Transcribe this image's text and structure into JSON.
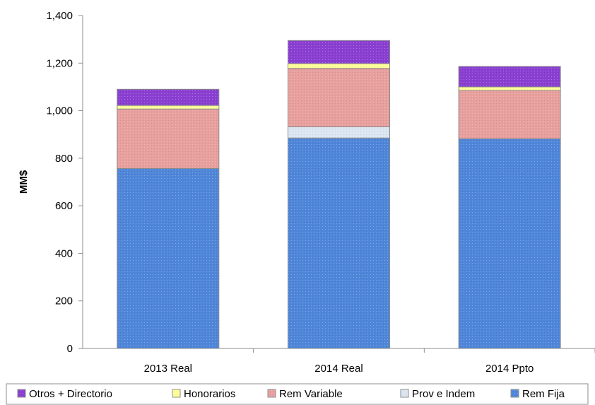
{
  "chart_data": {
    "type": "bar",
    "stacked": true,
    "categories": [
      "2013 Real",
      "2014 Real",
      "2014 Ppto"
    ],
    "series": [
      {
        "name": "Rem Fija",
        "color": "#4f86d9",
        "values": [
          757,
          885,
          882
        ]
      },
      {
        "name": "Prov e Indem",
        "color": "#dce6f2",
        "values": [
          0,
          47,
          0
        ]
      },
      {
        "name": "Rem Variable",
        "color": "#e8a09e",
        "values": [
          250,
          246,
          203
        ]
      },
      {
        "name": "Honorarios",
        "color": "#ffff99",
        "values": [
          15,
          20,
          15
        ]
      },
      {
        "name": "Otros + Directorio",
        "color": "#8a3fd1",
        "values": [
          68,
          97,
          86
        ]
      }
    ],
    "ylabel": "MM$",
    "ylim": [
      0,
      1400
    ],
    "yticks": [
      "0",
      "200",
      "400",
      "600",
      "800",
      "1,000",
      "1,200",
      "1,400"
    ],
    "grid": false,
    "legend_position": "bottom",
    "legend_order": [
      "Otros + Directorio",
      "Honorarios",
      "Rem Variable",
      "Prov e Indem",
      "Rem Fija"
    ]
  }
}
